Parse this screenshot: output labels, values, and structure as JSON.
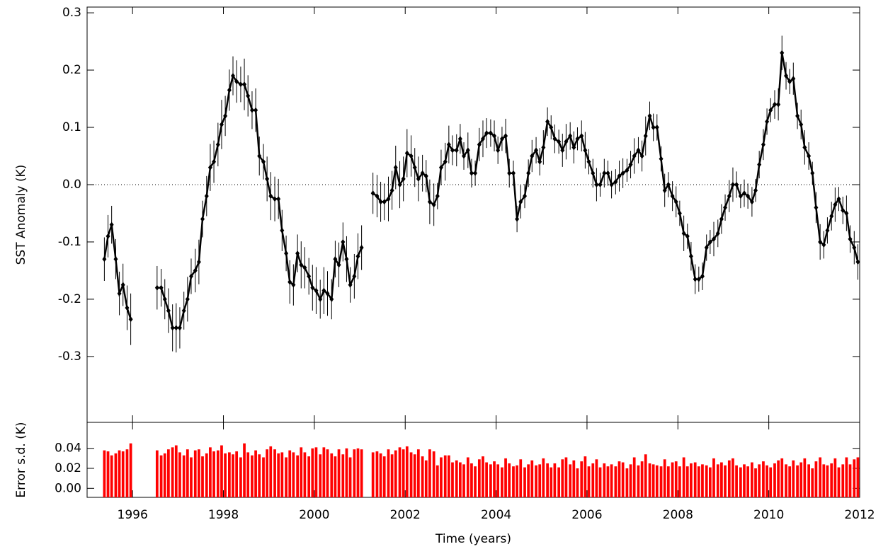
{
  "chart_data": [
    {
      "type": "line",
      "y_label": "SST Anomaly (K)",
      "x": [
        1995.38,
        1995.46,
        1995.54,
        1995.63,
        1995.71,
        1995.79,
        1995.88,
        1995.96,
        1996.04,
        1996.13,
        1996.21,
        1996.29,
        1996.38,
        1996.46,
        1996.54,
        1996.63,
        1996.71,
        1996.79,
        1996.88,
        1996.96,
        1997.04,
        1997.13,
        1997.21,
        1997.29,
        1997.38,
        1997.46,
        1997.54,
        1997.63,
        1997.71,
        1997.79,
        1997.88,
        1997.96,
        1998.04,
        1998.13,
        1998.21,
        1998.29,
        1998.38,
        1998.46,
        1998.54,
        1998.63,
        1998.71,
        1998.79,
        1998.88,
        1998.96,
        1999.04,
        1999.13,
        1999.21,
        1999.29,
        1999.38,
        1999.46,
        1999.54,
        1999.63,
        1999.71,
        1999.79,
        1999.88,
        1999.96,
        2000.04,
        2000.13,
        2000.21,
        2000.29,
        2000.38,
        2000.46,
        2000.54,
        2000.63,
        2000.71,
        2000.79,
        2000.88,
        2000.96,
        2001.04,
        2001.13,
        2001.21,
        2001.29,
        2001.38,
        2001.46,
        2001.54,
        2001.63,
        2001.71,
        2001.79,
        2001.88,
        2001.96,
        2002.04,
        2002.13,
        2002.21,
        2002.29,
        2002.38,
        2002.46,
        2002.54,
        2002.63,
        2002.71,
        2002.79,
        2002.88,
        2002.96,
        2003.04,
        2003.13,
        2003.21,
        2003.29,
        2003.38,
        2003.46,
        2003.54,
        2003.63,
        2003.71,
        2003.79,
        2003.88,
        2003.96,
        2004.04,
        2004.13,
        2004.21,
        2004.29,
        2004.38,
        2004.46,
        2004.54,
        2004.63,
        2004.71,
        2004.79,
        2004.88,
        2004.96,
        2005.04,
        2005.13,
        2005.21,
        2005.29,
        2005.38,
        2005.46,
        2005.54,
        2005.63,
        2005.71,
        2005.79,
        2005.88,
        2005.96,
        2006.04,
        2006.13,
        2006.21,
        2006.29,
        2006.38,
        2006.46,
        2006.54,
        2006.63,
        2006.71,
        2006.79,
        2006.88,
        2006.96,
        2007.04,
        2007.13,
        2007.21,
        2007.29,
        2007.38,
        2007.46,
        2007.54,
        2007.63,
        2007.71,
        2007.79,
        2007.88,
        2007.96,
        2008.04,
        2008.13,
        2008.21,
        2008.29,
        2008.38,
        2008.46,
        2008.54,
        2008.63,
        2008.71,
        2008.79,
        2008.88,
        2008.96,
        2009.04,
        2009.13,
        2009.21,
        2009.29,
        2009.38,
        2009.46,
        2009.54,
        2009.63,
        2009.71,
        2009.79,
        2009.88,
        2009.96,
        2010.04,
        2010.13,
        2010.21,
        2010.29,
        2010.38,
        2010.46,
        2010.54,
        2010.63,
        2010.71,
        2010.79,
        2010.88,
        2010.96,
        2011.04,
        2011.13,
        2011.21,
        2011.29,
        2011.38,
        2011.46,
        2011.54,
        2011.63,
        2011.71,
        2011.79,
        2011.88,
        2011.96
      ],
      "series": [
        {
          "color": "#000000",
          "values": [
            -0.13,
            -0.09,
            -0.07,
            -0.13,
            -0.19,
            -0.175,
            -0.215,
            -0.235,
            null,
            null,
            null,
            null,
            null,
            null,
            -0.18,
            -0.18,
            -0.2,
            -0.22,
            -0.25,
            -0.25,
            -0.25,
            -0.22,
            -0.2,
            -0.16,
            -0.15,
            -0.135,
            -0.06,
            -0.02,
            0.03,
            0.04,
            0.07,
            0.105,
            0.12,
            0.165,
            0.19,
            0.18,
            0.175,
            0.175,
            0.155,
            0.13,
            0.13,
            0.05,
            0.04,
            0.01,
            -0.02,
            -0.025,
            -0.025,
            -0.08,
            -0.12,
            -0.17,
            -0.175,
            -0.12,
            -0.14,
            -0.145,
            -0.16,
            -0.18,
            -0.185,
            -0.2,
            -0.185,
            -0.19,
            -0.2,
            -0.13,
            -0.14,
            -0.1,
            -0.13,
            -0.175,
            -0.16,
            -0.125,
            -0.11,
            null,
            null,
            -0.015,
            -0.02,
            -0.03,
            -0.03,
            -0.025,
            -0.01,
            0.03,
            0.0,
            0.01,
            0.055,
            0.05,
            0.03,
            0.01,
            0.02,
            0.015,
            -0.03,
            -0.035,
            -0.02,
            0.03,
            0.04,
            0.07,
            0.06,
            0.06,
            0.08,
            0.05,
            0.06,
            0.02,
            0.02,
            0.07,
            0.08,
            0.09,
            0.09,
            0.085,
            0.06,
            0.08,
            0.085,
            0.02,
            0.02,
            -0.06,
            -0.03,
            -0.02,
            0.02,
            0.05,
            0.06,
            0.04,
            0.065,
            0.11,
            0.1,
            0.08,
            0.075,
            0.06,
            0.075,
            0.085,
            0.065,
            0.08,
            0.085,
            0.06,
            0.04,
            0.02,
            0.0,
            0.0,
            0.02,
            0.02,
            0.0,
            0.005,
            0.015,
            0.02,
            0.025,
            0.035,
            0.05,
            0.06,
            0.05,
            0.085,
            0.12,
            0.1,
            0.1,
            0.045,
            -0.01,
            0.0,
            -0.02,
            -0.03,
            -0.05,
            -0.085,
            -0.09,
            -0.125,
            -0.165,
            -0.165,
            -0.16,
            -0.11,
            -0.1,
            -0.095,
            -0.085,
            -0.06,
            -0.04,
            -0.02,
            0.0,
            0.0,
            -0.02,
            -0.015,
            -0.02,
            -0.03,
            -0.01,
            0.035,
            0.07,
            0.11,
            0.13,
            0.14,
            0.14,
            0.23,
            0.19,
            0.18,
            0.185,
            0.12,
            0.105,
            0.065,
            0.05,
            0.02,
            -0.04,
            -0.1,
            -0.105,
            -0.08,
            -0.055,
            -0.035,
            -0.025,
            -0.045,
            -0.05,
            -0.095,
            -0.11,
            -0.135
          ],
          "errors": [
            0.038,
            0.037,
            0.033,
            0.035,
            0.038,
            0.037,
            0.039,
            0.045,
            null,
            null,
            null,
            null,
            null,
            null,
            0.038,
            0.033,
            0.035,
            0.039,
            0.041,
            0.043,
            0.036,
            0.033,
            0.039,
            0.031,
            0.038,
            0.039,
            0.032,
            0.035,
            0.041,
            0.037,
            0.038,
            0.043,
            0.035,
            0.036,
            0.034,
            0.037,
            0.031,
            0.045,
            0.036,
            0.033,
            0.038,
            0.034,
            0.031,
            0.039,
            0.042,
            0.039,
            0.035,
            0.036,
            0.031,
            0.038,
            0.036,
            0.033,
            0.041,
            0.036,
            0.032,
            0.04,
            0.041,
            0.034,
            0.041,
            0.039,
            0.035,
            0.032,
            0.039,
            0.034,
            0.04,
            0.031,
            0.039,
            0.04,
            0.039,
            null,
            null,
            0.036,
            0.037,
            0.035,
            0.032,
            0.039,
            0.034,
            0.038,
            0.041,
            0.039,
            0.042,
            0.036,
            0.034,
            0.039,
            0.032,
            0.028,
            0.039,
            0.037,
            0.023,
            0.031,
            0.033,
            0.033,
            0.026,
            0.028,
            0.026,
            0.024,
            0.031,
            0.025,
            0.022,
            0.029,
            0.032,
            0.026,
            0.024,
            0.027,
            0.024,
            0.021,
            0.03,
            0.025,
            0.022,
            0.023,
            0.029,
            0.021,
            0.024,
            0.028,
            0.023,
            0.024,
            0.03,
            0.025,
            0.021,
            0.025,
            0.021,
            0.029,
            0.031,
            0.024,
            0.028,
            0.02,
            0.027,
            0.032,
            0.022,
            0.025,
            0.029,
            0.021,
            0.025,
            0.022,
            0.024,
            0.022,
            0.027,
            0.026,
            0.02,
            0.024,
            0.031,
            0.023,
            0.027,
            0.034,
            0.025,
            0.024,
            0.023,
            0.022,
            0.029,
            0.022,
            0.026,
            0.027,
            0.022,
            0.031,
            0.022,
            0.025,
            0.026,
            0.022,
            0.024,
            0.023,
            0.021,
            0.03,
            0.024,
            0.026,
            0.023,
            0.028,
            0.03,
            0.023,
            0.021,
            0.024,
            0.022,
            0.026,
            0.02,
            0.024,
            0.027,
            0.023,
            0.021,
            0.025,
            0.028,
            0.03,
            0.024,
            0.022,
            0.028,
            0.023,
            0.026,
            0.03,
            0.024,
            0.02,
            0.027,
            0.031,
            0.024,
            0.023,
            0.025,
            0.03,
            0.021,
            0.024,
            0.031,
            0.024,
            0.029,
            0.031
          ]
        }
      ],
      "xlim": [
        1995,
        2012
      ],
      "xticks": [
        1996,
        1998,
        2000,
        2002,
        2004,
        2006,
        2008,
        2010,
        2012
      ],
      "ylim": [
        -0.415,
        0.31
      ],
      "yticks": [
        0.3,
        0.2,
        0.1,
        {
          "value": 0,
          "label": "0.0"
        },
        -0.1,
        -0.2,
        -0.3
      ],
      "zero_line": true
    },
    {
      "type": "bar",
      "y_label": "Error s.d. (K)",
      "x_label": "Time (years)",
      "color": "#ff0000",
      "x": [
        1995.38,
        1995.46,
        1995.54,
        1995.63,
        1995.71,
        1995.79,
        1995.88,
        1995.96,
        1996.04,
        1996.13,
        1996.21,
        1996.29,
        1996.38,
        1996.46,
        1996.54,
        1996.63,
        1996.71,
        1996.79,
        1996.88,
        1996.96,
        1997.04,
        1997.13,
        1997.21,
        1997.29,
        1997.38,
        1997.46,
        1997.54,
        1997.63,
        1997.71,
        1997.79,
        1997.88,
        1997.96,
        1998.04,
        1998.13,
        1998.21,
        1998.29,
        1998.38,
        1998.46,
        1998.54,
        1998.63,
        1998.71,
        1998.79,
        1998.88,
        1998.96,
        1999.04,
        1999.13,
        1999.21,
        1999.29,
        1999.38,
        1999.46,
        1999.54,
        1999.63,
        1999.71,
        1999.79,
        1999.88,
        1999.96,
        2000.04,
        2000.13,
        2000.21,
        2000.29,
        2000.38,
        2000.46,
        2000.54,
        2000.63,
        2000.71,
        2000.79,
        2000.88,
        2000.96,
        2001.04,
        2001.13,
        2001.21,
        2001.29,
        2001.38,
        2001.46,
        2001.54,
        2001.63,
        2001.71,
        2001.79,
        2001.88,
        2001.96,
        2002.04,
        2002.13,
        2002.21,
        2002.29,
        2002.38,
        2002.46,
        2002.54,
        2002.63,
        2002.71,
        2002.79,
        2002.88,
        2002.96,
        2003.04,
        2003.13,
        2003.21,
        2003.29,
        2003.38,
        2003.46,
        2003.54,
        2003.63,
        2003.71,
        2003.79,
        2003.88,
        2003.96,
        2004.04,
        2004.13,
        2004.21,
        2004.29,
        2004.38,
        2004.46,
        2004.54,
        2004.63,
        2004.71,
        2004.79,
        2004.88,
        2004.96,
        2005.04,
        2005.13,
        2005.21,
        2005.29,
        2005.38,
        2005.46,
        2005.54,
        2005.63,
        2005.71,
        2005.79,
        2005.88,
        2005.96,
        2006.04,
        2006.13,
        2006.21,
        2006.29,
        2006.38,
        2006.46,
        2006.54,
        2006.63,
        2006.71,
        2006.79,
        2006.88,
        2006.96,
        2007.04,
        2007.13,
        2007.21,
        2007.29,
        2007.38,
        2007.46,
        2007.54,
        2007.63,
        2007.71,
        2007.79,
        2007.88,
        2007.96,
        2008.04,
        2008.13,
        2008.21,
        2008.29,
        2008.38,
        2008.46,
        2008.54,
        2008.63,
        2008.71,
        2008.79,
        2008.88,
        2008.96,
        2009.04,
        2009.13,
        2009.21,
        2009.29,
        2009.38,
        2009.46,
        2009.54,
        2009.63,
        2009.71,
        2009.79,
        2009.88,
        2009.96,
        2010.04,
        2010.13,
        2010.21,
        2010.29,
        2010.38,
        2010.46,
        2010.54,
        2010.63,
        2010.71,
        2010.79,
        2010.88,
        2010.96,
        2011.04,
        2011.13,
        2011.21,
        2011.29,
        2011.38,
        2011.46,
        2011.54,
        2011.63,
        2011.71,
        2011.79,
        2011.88,
        2011.96
      ],
      "values": [
        0.038,
        0.037,
        0.033,
        0.035,
        0.038,
        0.037,
        0.039,
        0.045,
        null,
        null,
        null,
        null,
        null,
        null,
        0.038,
        0.033,
        0.035,
        0.039,
        0.041,
        0.043,
        0.036,
        0.033,
        0.039,
        0.031,
        0.038,
        0.039,
        0.032,
        0.035,
        0.041,
        0.037,
        0.038,
        0.043,
        0.035,
        0.036,
        0.034,
        0.037,
        0.031,
        0.045,
        0.036,
        0.033,
        0.038,
        0.034,
        0.031,
        0.039,
        0.042,
        0.039,
        0.035,
        0.036,
        0.031,
        0.038,
        0.036,
        0.033,
        0.041,
        0.036,
        0.032,
        0.04,
        0.041,
        0.034,
        0.041,
        0.039,
        0.035,
        0.032,
        0.039,
        0.034,
        0.04,
        0.031,
        0.039,
        0.04,
        0.039,
        null,
        null,
        0.036,
        0.037,
        0.035,
        0.032,
        0.039,
        0.034,
        0.038,
        0.041,
        0.039,
        0.042,
        0.036,
        0.034,
        0.039,
        0.032,
        0.028,
        0.039,
        0.037,
        0.023,
        0.031,
        0.033,
        0.033,
        0.026,
        0.028,
        0.026,
        0.024,
        0.031,
        0.025,
        0.022,
        0.029,
        0.032,
        0.026,
        0.024,
        0.027,
        0.024,
        0.021,
        0.03,
        0.025,
        0.022,
        0.023,
        0.029,
        0.021,
        0.024,
        0.028,
        0.023,
        0.024,
        0.03,
        0.025,
        0.021,
        0.025,
        0.021,
        0.029,
        0.031,
        0.024,
        0.028,
        0.02,
        0.027,
        0.032,
        0.022,
        0.025,
        0.029,
        0.021,
        0.025,
        0.022,
        0.024,
        0.022,
        0.027,
        0.026,
        0.02,
        0.024,
        0.031,
        0.023,
        0.027,
        0.034,
        0.025,
        0.024,
        0.023,
        0.022,
        0.029,
        0.022,
        0.026,
        0.027,
        0.022,
        0.031,
        0.022,
        0.025,
        0.026,
        0.022,
        0.024,
        0.023,
        0.021,
        0.03,
        0.024,
        0.026,
        0.023,
        0.028,
        0.03,
        0.023,
        0.021,
        0.024,
        0.022,
        0.026,
        0.02,
        0.024,
        0.027,
        0.023,
        0.021,
        0.025,
        0.028,
        0.03,
        0.024,
        0.022,
        0.028,
        0.023,
        0.026,
        0.03,
        0.024,
        0.02,
        0.027,
        0.031,
        0.024,
        0.023,
        0.025,
        0.03,
        0.021,
        0.024,
        0.031,
        0.024,
        0.029,
        0.031
      ],
      "xlim": [
        1995,
        2012
      ],
      "xticks": [
        1996,
        1998,
        2000,
        2002,
        2004,
        2006,
        2008,
        2010,
        2012
      ],
      "ylim": [
        -0.009,
        0.066
      ],
      "yticks": [
        {
          "value": 0,
          "label": "0.00"
        },
        0.02,
        0.04
      ]
    }
  ]
}
